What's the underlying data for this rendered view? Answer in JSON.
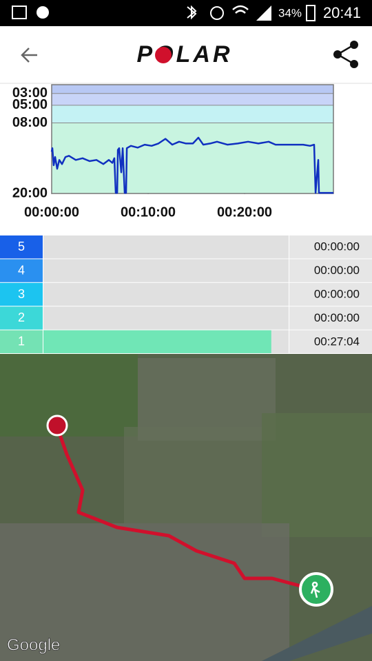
{
  "status_bar": {
    "battery": "34%",
    "time": "20:41"
  },
  "app_bar": {
    "logo": "POLAR"
  },
  "chart_data": {
    "type": "line",
    "color": "#1030c0",
    "x": [
      0,
      0.07,
      0.21,
      0.36,
      0.57,
      0.79,
      1.07,
      1.43,
      1.79,
      2.5,
      3.21,
      3.93,
      4.64,
      5.36,
      5.93,
      6.29,
      6.5,
      6.64,
      6.79,
      6.86,
      7.0,
      7.21,
      7.36,
      7.57,
      7.71,
      7.79,
      8.21,
      8.93,
      9.64,
      10.36,
      11.07,
      11.79,
      12.5,
      13.21,
      13.93,
      14.64,
      15.21,
      15.71,
      16.43,
      17.14,
      18.21,
      19.29,
      20.36,
      21.43,
      22.5,
      23.21,
      24.64,
      26.07,
      26.79,
      27.21,
      27.36,
      27.64,
      27.71,
      29.21
    ],
    "values": [
      12.9,
      12.3,
      15.2,
      13.8,
      15.8,
      14.3,
      15.0,
      13.8,
      13.6,
      14.3,
      14.0,
      14.5,
      14.3,
      15.0,
      14.3,
      14.8,
      14.0,
      19.9,
      19.9,
      12.6,
      12.3,
      16.4,
      12.3,
      19.9,
      19.9,
      12.3,
      11.9,
      12.2,
      11.7,
      11.9,
      11.5,
      10.7,
      11.7,
      11.2,
      11.5,
      11.5,
      10.5,
      11.7,
      11.5,
      11.2,
      11.7,
      11.5,
      11.2,
      11.5,
      11.2,
      11.7,
      11.7,
      11.7,
      11.9,
      11.7,
      19.9,
      14.3,
      19.9,
      19.9
    ],
    "xlim": [
      0,
      29.21
    ],
    "xticks": [
      {
        "value": 0,
        "label": "00:00:00"
      },
      {
        "value": 10,
        "label": "00:10:00"
      },
      {
        "value": 20,
        "label": "00:20:00"
      }
    ],
    "ylim": [
      20,
      1.5
    ],
    "yticks": [
      {
        "value": 3,
        "label": "03:00"
      },
      {
        "value": 5,
        "label": "05:00"
      },
      {
        "value": 8,
        "label": "08:00"
      },
      {
        "value": 20,
        "label": "20:00"
      }
    ]
  },
  "zones": {
    "type": "bar",
    "categories": [
      "5",
      "4",
      "3",
      "2",
      "1"
    ],
    "values": [
      0,
      0,
      0,
      0,
      27.067
    ],
    "value_labels": [
      "00:00:00",
      "00:00:00",
      "00:00:00",
      "00:00:00",
      "00:27:04"
    ],
    "colors": [
      "#1860e8",
      "#2a90f0",
      "#1cc4f0",
      "#3cd8d8",
      "#74e2b4"
    ],
    "bar_color": "#70e6b6",
    "xlim": [
      0,
      29.21
    ]
  },
  "map": {
    "attribution": "Google"
  }
}
